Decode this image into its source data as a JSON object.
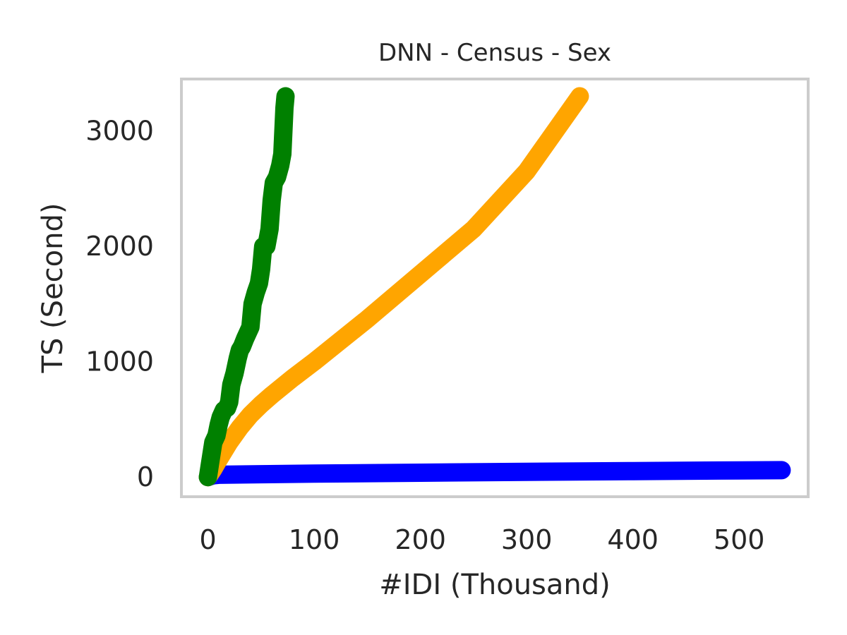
{
  "chart_data": {
    "type": "line",
    "title": "DNN - Census - Sex",
    "xlabel": "#IDI (Thousand)",
    "ylabel": "TS (Second)",
    "xlim": [
      -25,
      565
    ],
    "ylim": [
      -170,
      3450
    ],
    "xticks": [
      0,
      100,
      200,
      300,
      400,
      500
    ],
    "yticks": [
      0,
      1000,
      2000,
      3000
    ],
    "grid": false,
    "frame_color": "#cccccc",
    "series": [
      {
        "color": "#0000ff",
        "x": [
          0,
          5,
          10,
          50,
          100,
          200,
          300,
          400,
          500,
          540
        ],
        "y": [
          0,
          15,
          20,
          25,
          30,
          38,
          45,
          52,
          58,
          60
        ]
      },
      {
        "color": "#ffa500",
        "x": [
          0,
          5,
          10,
          20,
          30,
          40,
          50,
          60,
          80,
          100,
          150,
          200,
          250,
          300,
          350
        ],
        "y": [
          0,
          70,
          150,
          300,
          430,
          540,
          630,
          710,
          860,
          1000,
          1370,
          1760,
          2150,
          2650,
          3300
        ]
      },
      {
        "color": "#008000",
        "x": [
          0,
          2,
          5,
          8,
          10,
          12,
          15,
          18,
          20,
          22,
          25,
          28,
          30,
          32,
          35,
          38,
          40,
          42,
          45,
          48,
          50,
          52,
          55,
          58,
          60,
          62,
          65,
          68,
          70,
          72,
          73
        ],
        "y": [
          0,
          120,
          300,
          360,
          450,
          520,
          580,
          600,
          650,
          800,
          900,
          1030,
          1100,
          1130,
          1200,
          1260,
          1300,
          1500,
          1600,
          1680,
          1800,
          2000,
          2000,
          2150,
          2400,
          2550,
          2600,
          2700,
          2800,
          3200,
          3300
        ]
      }
    ]
  }
}
